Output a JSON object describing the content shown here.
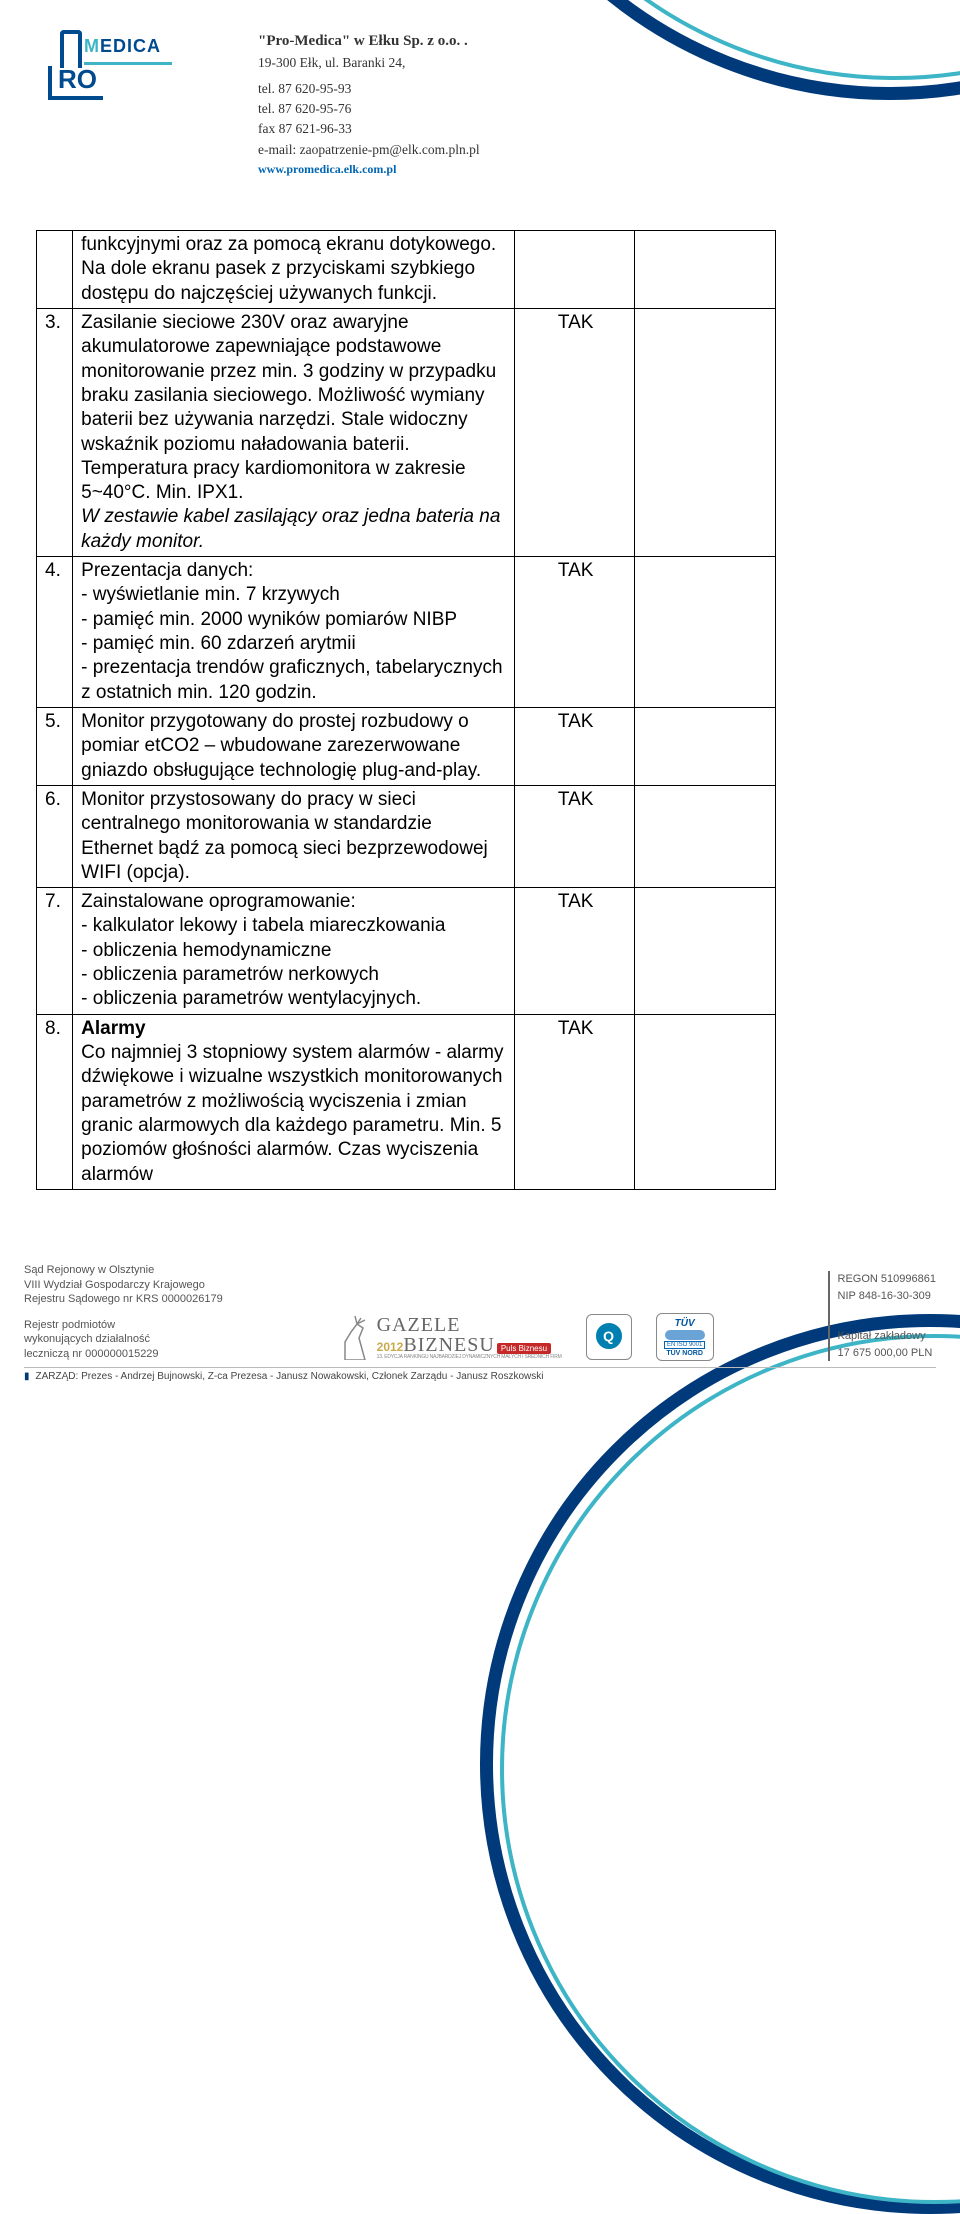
{
  "company": {
    "name": "\"Pro-Medica\" w Ełku Sp. z o.o.  .",
    "addr": "19-300 Ełk, ul. Baranki 24,",
    "tel1": "tel. 87 620-95-93",
    "tel2": "tel. 87 620-95-76",
    "fax": "fax 87 621-96-33",
    "email": "e-mail: zaopatrzenie-pm@elk.com.pln.pl",
    "website": "www.promedica.elk.com.pl"
  },
  "logo": {
    "brand1": "EDICA",
    "brand2": "RO"
  },
  "rows": [
    {
      "num": "",
      "desc": "funkcyjnymi oraz za pomocą ekranu dotykowego. Na dole ekranu pasek z przyciskami szybkiego dostępu do najczęściej używanych funkcji.",
      "req": ""
    },
    {
      "num": "3.",
      "desc": "Zasilanie sieciowe 230V oraz awaryjne akumulatorowe zapewniające podstawowe monitorowanie przez min. 3 godziny w przypadku braku zasilania sieciowego. Możliwość wymiany baterii bez używania narzędzi. Stale widoczny wskaźnik poziomu naładowania baterii. Temperatura pracy kardiomonitora w zakresie 5~40°C. Min. IPX1.",
      "desc_italic": "W zestawie kabel zasilający oraz jedna bateria na każdy monitor.",
      "req": "TAK"
    },
    {
      "num": "4.",
      "desc": "Prezentacja danych:\n- wyświetlanie min. 7 krzywych\n- pamięć min. 2000 wyników pomiarów NIBP\n- pamięć min. 60 zdarzeń arytmii\n- prezentacja trendów graficznych, tabelarycznych z ostatnich min. 120 godzin.",
      "req": "TAK"
    },
    {
      "num": "5.",
      "desc": "Monitor przygotowany do prostej rozbudowy o pomiar etCO2 – wbudowane zarezerwowane gniazdo obsługujące technologię plug-and-play.",
      "req": "TAK"
    },
    {
      "num": "6.",
      "desc": "Monitor przystosowany do pracy w sieci centralnego monitorowania w standardzie Ethernet bądź za pomocą sieci bezprzewodowej WIFI (opcja).",
      "req": "TAK"
    },
    {
      "num": "7.",
      "desc": "Zainstalowane oprogramowanie:\n- kalkulator lekowy i tabela miareczkowania\n- obliczenia hemodynamiczne\n- obliczenia parametrów nerkowych\n- obliczenia parametrów wentylacyjnych.",
      "req": "TAK"
    },
    {
      "num": "8.",
      "bold_label": "Alarmy",
      "desc": "Co najmniej 3 stopniowy system alarmów - alarmy dźwiękowe i wizualne wszystkich monitorowanych parametrów z możliwością wyciszenia i zmian granic alarmowych dla każdego parametru. Min. 5 poziomów głośności alarmów. Czas wyciszenia alarmów",
      "req": "TAK"
    }
  ],
  "footer": {
    "left1": "Sąd Rejonowy w Olsztynie",
    "left2": "VIII Wydział Gospodarczy Krajowego",
    "left3": "Rejestru Sądowego nr KRS 0000026179",
    "left4": "Rejestr podmiotów",
    "left5": "wykonujących działalność",
    "left6": "leczniczą nr  000000015229",
    "gazele_year": "2012",
    "gazele1": "GAZELE",
    "gazele2": "BIZNESU",
    "gazele_puls": "Puls Biznesu",
    "gazele_sub": "13. EDYCJA RANKINGU NAJBARDZIEJ DYNAMICZNYCH MAŁYCH I ŚREDNICH FIRM",
    "tuv_top": "TÜV",
    "tuv_en": "EN ISO 9001",
    "tuv_bot": "TÜV NORD",
    "regon": "REGON 510996861",
    "nip": "NIP 848-16-30-309",
    "kapital1": "Kapitał zakładowy",
    "kapital2": "17 675 000,00 PLN",
    "zarzad": "ZARZĄD: Prezes - Andrzej Bujnowski, Z-ca Prezesa - Janusz Nowakowski, Członek Zarządu - Janusz Roszkowski"
  }
}
